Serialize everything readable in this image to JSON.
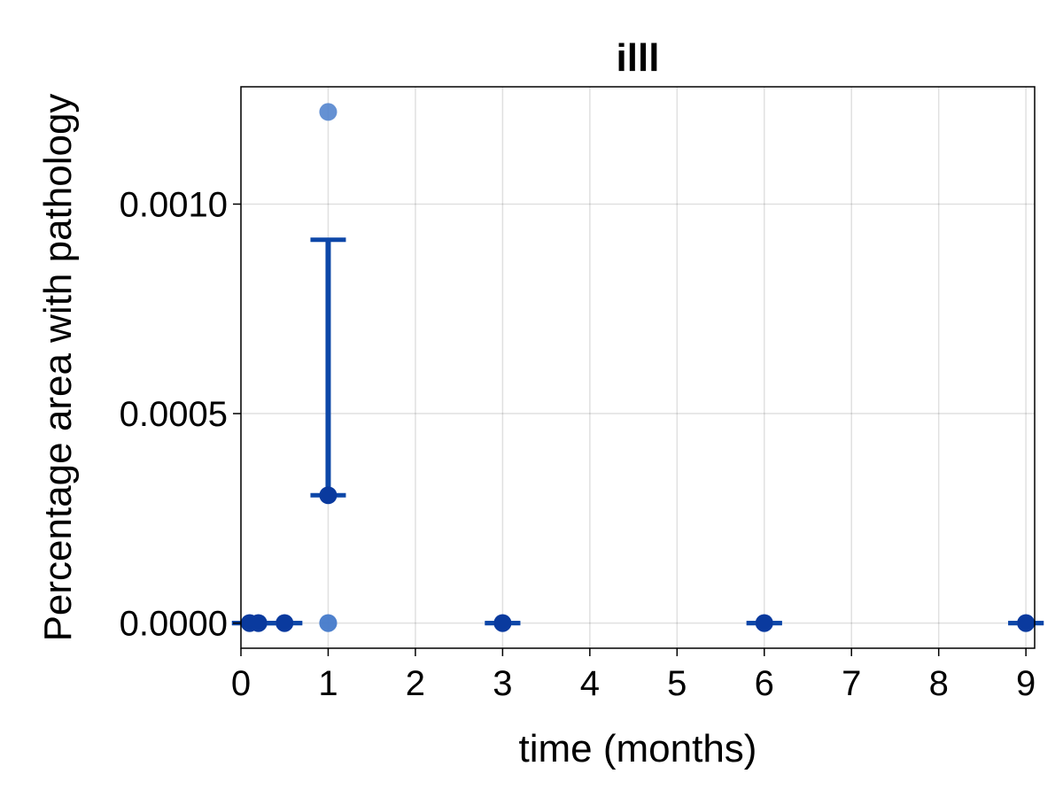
{
  "chart_data": {
    "type": "scatter",
    "title": "illl",
    "xlabel": "time (months)",
    "ylabel": "Percentage area with pathology",
    "xlim": [
      0,
      9.1
    ],
    "ylim": [
      -6e-05,
      0.00128
    ],
    "xticks": [
      0,
      1,
      2,
      3,
      4,
      5,
      6,
      7,
      8,
      9
    ],
    "xtick_labels": [
      "0",
      "1",
      "2",
      "3",
      "4",
      "5",
      "6",
      "7",
      "8",
      "9"
    ],
    "yticks": [
      0,
      0.0005,
      0.001
    ],
    "ytick_labels": [
      "0.0000",
      "0.0005",
      "0.0010"
    ],
    "grid": true,
    "legend": "none",
    "raw_points": {
      "color": "#4a7ecb",
      "points": [
        {
          "x": 0.1,
          "y": 0
        },
        {
          "x": 0.2,
          "y": 0
        },
        {
          "x": 0.5,
          "y": 0
        },
        {
          "x": 1,
          "y": 0
        },
        {
          "x": 1,
          "y": 0
        },
        {
          "x": 1,
          "y": 0.00122
        },
        {
          "x": 3,
          "y": 0
        },
        {
          "x": 6,
          "y": 0
        },
        {
          "x": 9,
          "y": 0
        }
      ]
    },
    "mean_points": {
      "color": "#0a3a9e",
      "points": [
        {
          "x": 0.1,
          "y": 0
        },
        {
          "x": 0.2,
          "y": 0
        },
        {
          "x": 0.5,
          "y": 0
        },
        {
          "x": 1,
          "y": 0.000305
        },
        {
          "x": 3,
          "y": 0
        },
        {
          "x": 6,
          "y": 0
        },
        {
          "x": 9,
          "y": 0
        }
      ]
    },
    "error_bars": {
      "color": "#0d47a8",
      "bars": [
        {
          "x": 0.1,
          "low": 0,
          "high": 0
        },
        {
          "x": 0.2,
          "low": 0,
          "high": 0
        },
        {
          "x": 0.5,
          "low": 0,
          "high": 0
        },
        {
          "x": 1,
          "low": 0.000305,
          "high": 0.000915
        },
        {
          "x": 3,
          "low": 0,
          "high": 0
        },
        {
          "x": 6,
          "low": 0,
          "high": 0
        },
        {
          "x": 9,
          "low": 0,
          "high": 0
        }
      ]
    }
  }
}
